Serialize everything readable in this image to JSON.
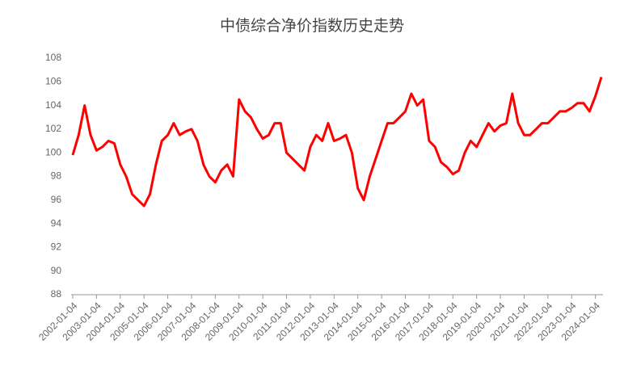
{
  "chart_data": {
    "type": "line",
    "title": "中债综合净价指数历史走势",
    "categories": [
      "2002-01-04",
      null,
      null,
      null,
      "2003-01-04",
      null,
      null,
      null,
      "2004-01-04",
      null,
      null,
      null,
      "2005-01-04",
      null,
      null,
      null,
      "2006-01-04",
      null,
      null,
      null,
      "2007-01-04",
      null,
      null,
      null,
      "2008-01-04",
      null,
      null,
      null,
      "2009-01-04",
      null,
      null,
      null,
      "2010-01-04",
      null,
      null,
      null,
      "2011-01-04",
      null,
      null,
      null,
      "2012-01-04",
      null,
      null,
      null,
      "2013-01-04",
      null,
      null,
      null,
      "2014-01-04",
      null,
      null,
      null,
      "2015-01-04",
      null,
      null,
      null,
      "2016-01-04",
      null,
      null,
      null,
      "2017-01-04",
      null,
      null,
      null,
      "2018-01-04",
      null,
      null,
      null,
      "2019-01-04",
      null,
      null,
      null,
      "2020-01-04",
      null,
      null,
      null,
      "2021-01-04",
      null,
      null,
      null,
      "2022-01-04",
      null,
      null,
      null,
      "2023-01-04",
      null,
      null,
      null,
      "2024-01-04",
      null
    ],
    "values": [
      99.8,
      101.5,
      104,
      101.5,
      100.2,
      100.5,
      101,
      100.8,
      99,
      98,
      96.5,
      96,
      95.5,
      96.5,
      99,
      101,
      101.5,
      102.5,
      101.5,
      101.8,
      102,
      101,
      99,
      98,
      97.5,
      98.5,
      99,
      98,
      104.5,
      103.5,
      103,
      102,
      101.2,
      101.5,
      102.5,
      102.5,
      100,
      99.5,
      99,
      98.5,
      100.5,
      101.5,
      101,
      102.5,
      101,
      101.2,
      101.5,
      100,
      97,
      96,
      98,
      99.5,
      101,
      102.5,
      102.5,
      103,
      103.5,
      105,
      104,
      104.5,
      101,
      100.5,
      99.2,
      98.8,
      98.2,
      98.5,
      100,
      101,
      100.5,
      101.5,
      102.5,
      101.8,
      102.3,
      102.5,
      105,
      102.5,
      101.5,
      101.5,
      102,
      102.5,
      102.5,
      103,
      103.5,
      103.5,
      103.8,
      104.2,
      104.2,
      103.5,
      104.8,
      106.4
    ],
    "color": "#ff0000",
    "ylim": [
      88,
      108
    ],
    "yticks": [
      88,
      90,
      92,
      94,
      96,
      98,
      100,
      102,
      104,
      106,
      108
    ],
    "grid": false
  }
}
